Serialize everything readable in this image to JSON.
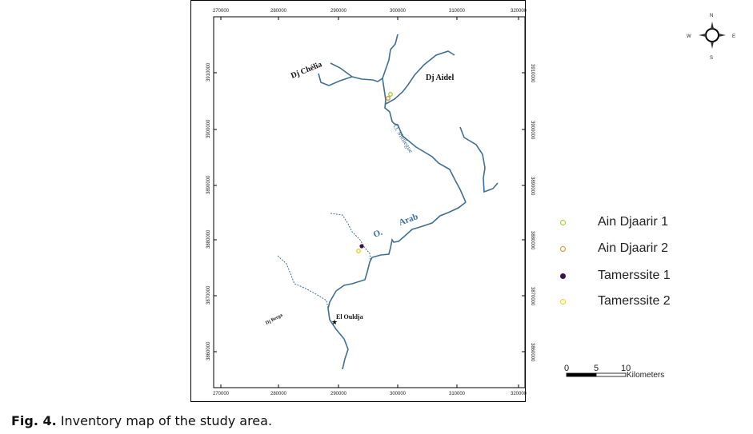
{
  "map": {
    "x_ticks": [
      "270000",
      "280000",
      "290000",
      "300000",
      "310000",
      "320000"
    ],
    "y_ticks": [
      "3910000",
      "3900000",
      "3890000",
      "3880000",
      "3870000",
      "3860000"
    ],
    "places": [
      "Dj Chélia",
      "Dj Aidel",
      "El Ouldja",
      "Dj Berga"
    ],
    "rivers": [
      "O. Mellegue",
      "O.",
      "Arab"
    ],
    "compass": {
      "n": "N",
      "s": "S",
      "e": "E",
      "w": "W"
    },
    "scale": {
      "labels": [
        "0",
        "5",
        "10"
      ],
      "unit": "Kilometers"
    },
    "river_color": "#3f6f93"
  },
  "legend": [
    {
      "label": "Ain Djaarir 1",
      "color": "#9acd32",
      "filled": false
    },
    {
      "label": "Ain Djaarir 2",
      "color": "#d2943c",
      "filled": false
    },
    {
      "label": "Tamerssite 1",
      "color": "#3a1050",
      "filled": true
    },
    {
      "label": "Tamerssite 2",
      "color": "#e6d21e",
      "filled": false
    }
  ],
  "caption": {
    "label": "Fig. 4.",
    "text": " Inventory map of the study area."
  }
}
